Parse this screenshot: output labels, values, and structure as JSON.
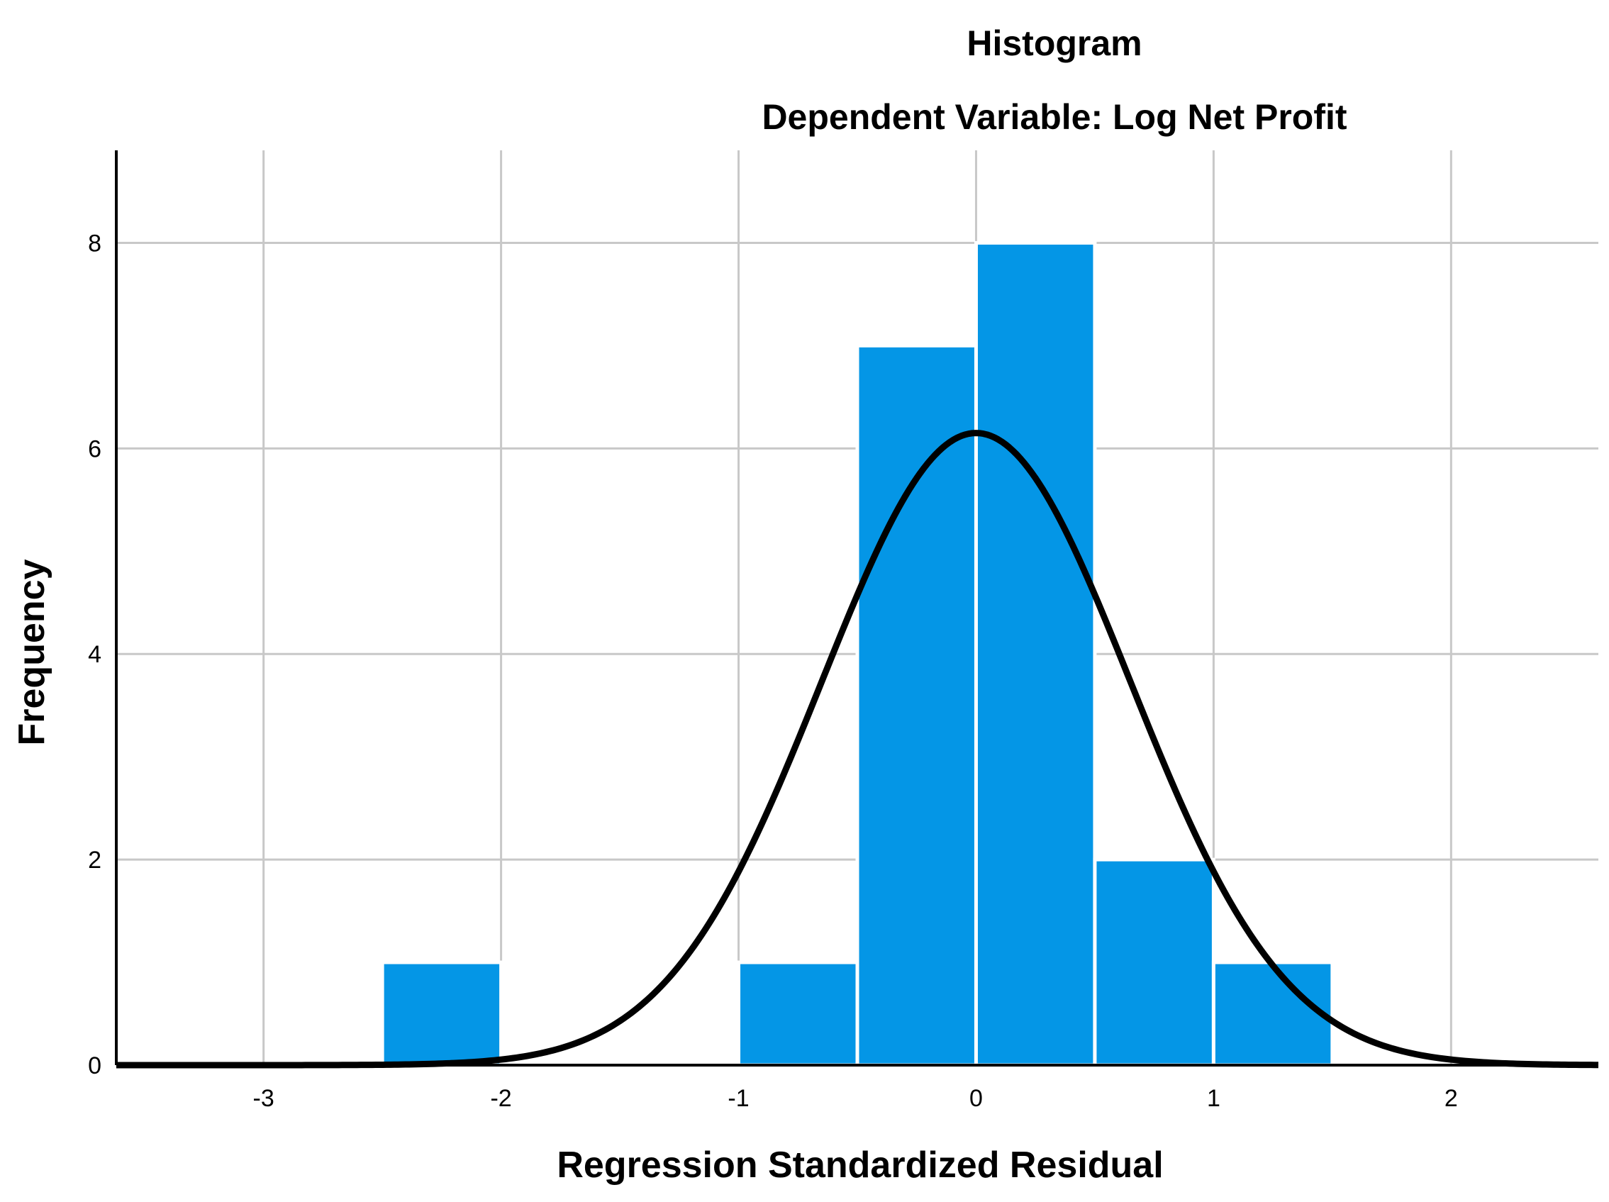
{
  "chart_data": {
    "type": "bar",
    "title": "Histogram",
    "subtitle": "Dependent Variable: Log Net Profit",
    "xlabel": "Regression Standardized Residual",
    "ylabel": "Frequency",
    "xlim": [
      -3.62,
      2.62
    ],
    "ylim": [
      0,
      8.9
    ],
    "xticks": [
      "-3",
      "-2",
      "-1",
      "0",
      "1",
      "2"
    ],
    "yticks": [
      "0",
      "2",
      "4",
      "6",
      "8"
    ],
    "grid": true,
    "bin_width": 0.5,
    "bins": [
      {
        "start": -2.5,
        "end": -2.0,
        "count": 1
      },
      {
        "start": -2.0,
        "end": -1.5,
        "count": 0
      },
      {
        "start": -1.5,
        "end": -1.0,
        "count": 0
      },
      {
        "start": -1.0,
        "end": -0.5,
        "count": 1
      },
      {
        "start": -0.5,
        "end": 0.0,
        "count": 7
      },
      {
        "start": 0.0,
        "end": 0.5,
        "count": 8
      },
      {
        "start": 0.5,
        "end": 1.0,
        "count": 2
      },
      {
        "start": 1.0,
        "end": 1.5,
        "count": 1
      }
    ],
    "normal_curve": {
      "mean": 0.0,
      "std_dev": 0.65,
      "n": 20,
      "peak": 6.15
    },
    "colors": {
      "bar": "#0496e6",
      "bar_edge": "#ffffff",
      "curve": "#000000",
      "grid": "#c8c8c8",
      "axis": "#000000"
    }
  }
}
